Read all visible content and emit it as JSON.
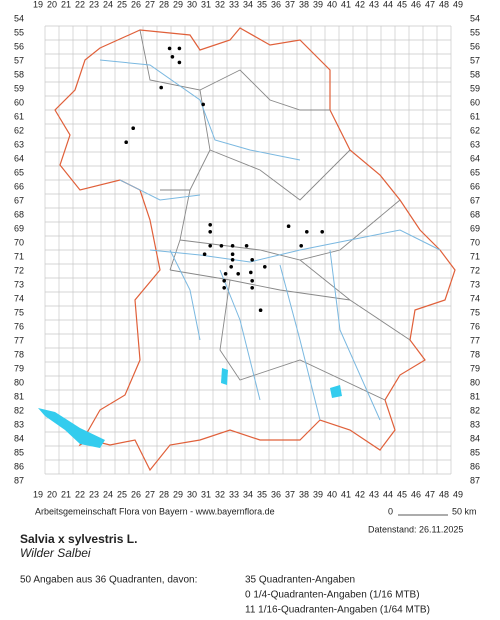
{
  "map": {
    "x_labels": [
      19,
      20,
      21,
      22,
      23,
      24,
      25,
      26,
      27,
      28,
      29,
      30,
      31,
      32,
      33,
      34,
      35,
      36,
      37,
      38,
      39,
      40,
      41,
      42,
      43,
      44,
      45,
      46,
      47,
      48,
      49
    ],
    "y_labels": [
      54,
      55,
      56,
      57,
      58,
      59,
      60,
      61,
      62,
      63,
      64,
      65,
      66,
      67,
      68,
      69,
      70,
      71,
      72,
      73,
      74,
      75,
      76,
      77,
      78,
      79,
      80,
      81,
      82,
      83,
      84,
      85,
      86,
      87
    ],
    "points": [
      [
        28.4,
        56.1
      ],
      [
        29.1,
        56.1
      ],
      [
        28.6,
        56.7
      ],
      [
        29.1,
        57.1
      ],
      [
        27.8,
        58.9
      ],
      [
        30.8,
        60.1
      ],
      [
        25.8,
        61.8
      ],
      [
        25.3,
        62.8
      ],
      [
        31.3,
        68.7
      ],
      [
        31.3,
        69.2
      ],
      [
        36.9,
        68.8
      ],
      [
        38.2,
        69.2
      ],
      [
        39.3,
        69.2
      ],
      [
        31.3,
        70.2
      ],
      [
        32.1,
        70.2
      ],
      [
        32.9,
        70.2
      ],
      [
        33.9,
        70.2
      ],
      [
        37.8,
        70.2
      ],
      [
        30.9,
        70.8
      ],
      [
        32.9,
        70.8
      ],
      [
        32.9,
        71.2
      ],
      [
        34.3,
        71.2
      ],
      [
        32.8,
        71.7
      ],
      [
        35.2,
        71.7
      ],
      [
        34.2,
        72.1
      ],
      [
        32.4,
        72.2
      ],
      [
        33.3,
        72.2
      ],
      [
        32.3,
        72.7
      ],
      [
        34.3,
        72.7
      ],
      [
        32.3,
        73.2
      ],
      [
        34.3,
        73.2
      ],
      [
        34.9,
        74.8
      ]
    ],
    "credit": "Arbeitsgemeinschaft Flora von Bayern - www.bayernflora.de",
    "scale_start": "0",
    "scale_end": "50 km",
    "date": "Datenstand: 26.11.2025"
  },
  "species": {
    "scientific_name": "Salvia x sylvestris L.",
    "common_name": "Wilder Salbei"
  },
  "summary": {
    "total": "50 Angaben aus 36 Quadranten, davon:",
    "lines": [
      "35 Quadranten-Angaben",
      "0 1/4-Quadranten-Angaben (1/16 MTB)",
      "11 1/16-Quadranten-Angaben (1/64 MTB)"
    ]
  }
}
